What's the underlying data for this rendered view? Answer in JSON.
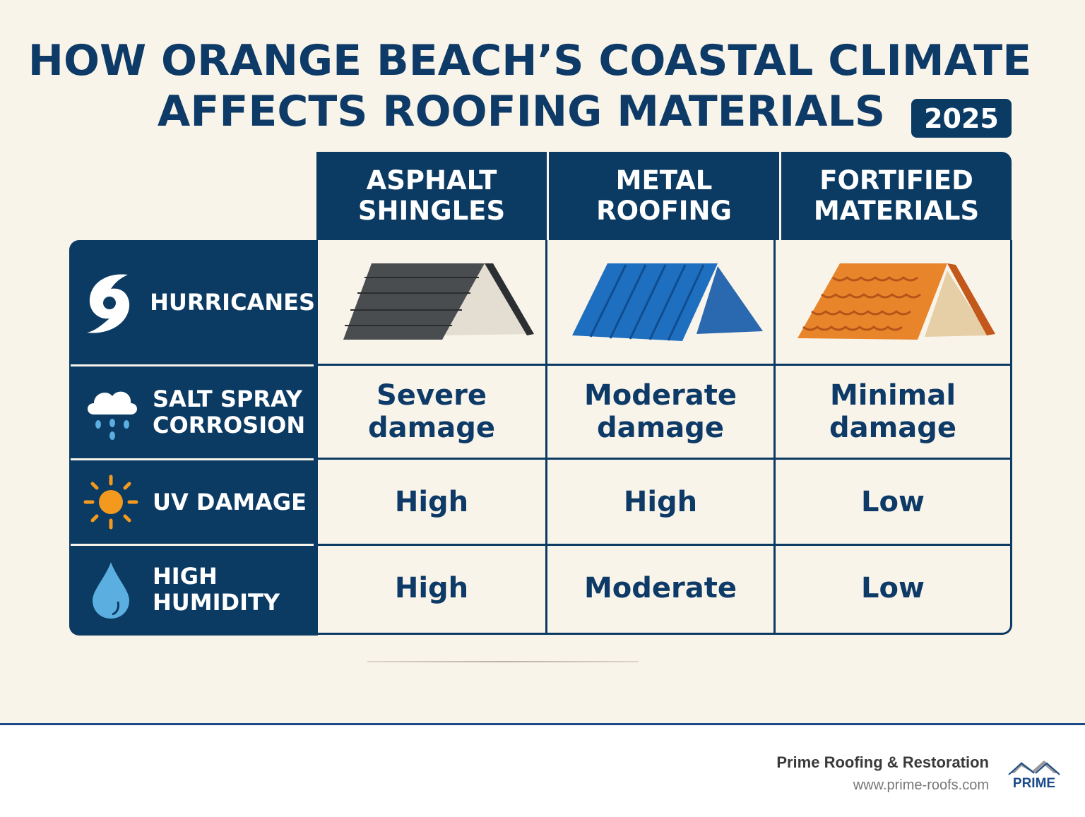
{
  "title": {
    "line1": "HOW ORANGE BEACH’S COASTAL CLIMATE",
    "line2": "AFFECTS ROOFING MATERIALS",
    "year": "2025"
  },
  "columns": [
    {
      "line1": "ASPHALT",
      "line2": "SHINGLES",
      "roof_color": "#4a4d50"
    },
    {
      "line1": "METAL",
      "line2": "ROOFING",
      "roof_color": "#1f6fc0"
    },
    {
      "line1": "FORTIFIED",
      "line2": "MATERIALS",
      "roof_color": "#e8842a"
    }
  ],
  "rows": [
    {
      "label1": "HURRICANES",
      "label2": "",
      "icon": "hurricane-icon"
    },
    {
      "label1": "SALT SPRAY",
      "label2": "CORROSION",
      "icon": "rain-cloud-icon",
      "values": [
        [
          "Severe",
          "damage"
        ],
        [
          "Moderate",
          "damage"
        ],
        [
          "Minimal",
          "damage"
        ]
      ]
    },
    {
      "label1": "UV DAMAGE",
      "label2": "",
      "icon": "sun-icon",
      "values": [
        [
          "High",
          ""
        ],
        [
          "High",
          ""
        ],
        [
          "Low",
          ""
        ]
      ]
    },
    {
      "label1": "HIGH",
      "label2": "HUMIDITY",
      "icon": "water-drop-icon",
      "values": [
        [
          "High",
          ""
        ],
        [
          "Moderate",
          ""
        ],
        [
          "Low",
          ""
        ]
      ]
    }
  ],
  "footer": {
    "company": "Prime Roofing & Restoration",
    "url": "www.prime-roofs.com",
    "logo_text": "PRIME"
  },
  "colors": {
    "navy": "#0b3a63",
    "background": "#f9f4ea",
    "accent_orange": "#f39a1e",
    "drop_blue": "#5aaee0"
  }
}
